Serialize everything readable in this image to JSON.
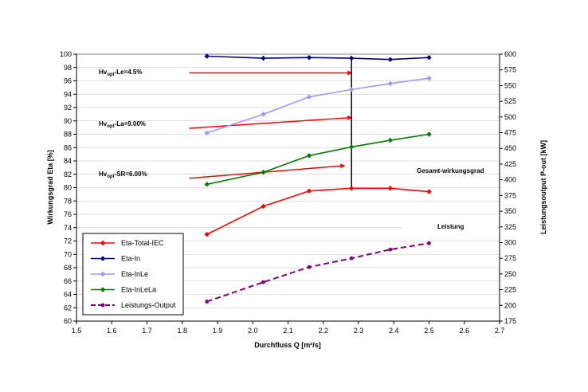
{
  "chart_data": {
    "type": "line",
    "xlabel": "Durchfluss Q [m³/s]",
    "ylabel_left": "Wirkungsgrad Eta [%]",
    "ylabel_right": "Leistungsoutput P-out [kW]",
    "xlim": [
      1.5,
      2.7
    ],
    "x_ticks": [
      "1.5",
      "1.6",
      "1.7",
      "1.8",
      "1.9",
      "2.0",
      "2.1",
      "2.2",
      "2.3",
      "2.4",
      "2.5",
      "2.6",
      "2.7"
    ],
    "ylim_left": [
      60,
      100
    ],
    "y_ticks_left": [
      "60",
      "62",
      "64",
      "66",
      "68",
      "70",
      "72",
      "74",
      "76",
      "78",
      "80",
      "82",
      "84",
      "86",
      "88",
      "90",
      "92",
      "94",
      "96",
      "98",
      "100"
    ],
    "ylim_right": [
      175,
      600
    ],
    "y_ticks_right": [
      "175",
      "200",
      "225",
      "250",
      "275",
      "300",
      "325",
      "350",
      "375",
      "400",
      "425",
      "450",
      "475",
      "500",
      "525",
      "550",
      "575",
      "600"
    ],
    "grid": true,
    "legend_position": "bottom-left",
    "series": [
      {
        "name": "Eta-Total-IEC",
        "axis": "left",
        "color": "#ff0000",
        "marker": "diamond",
        "dash": false,
        "x": [
          1.87,
          2.03,
          2.16,
          2.28,
          2.39,
          2.5
        ],
        "values": [
          73.0,
          77.2,
          79.5,
          79.9,
          79.9,
          79.4
        ]
      },
      {
        "name": "Eta-In",
        "axis": "left",
        "color": "#000080",
        "marker": "diamond",
        "dash": false,
        "x": [
          1.87,
          2.03,
          2.16,
          2.28,
          2.39,
          2.5
        ],
        "values": [
          99.7,
          99.4,
          99.5,
          99.4,
          99.2,
          99.5
        ]
      },
      {
        "name": "Eta-InLe",
        "axis": "left",
        "color": "#9999ff",
        "marker": "diamond",
        "dash": false,
        "x": [
          1.87,
          2.03,
          2.16,
          2.28,
          2.39,
          2.5
        ],
        "values": [
          88.2,
          91.0,
          93.6,
          94.7,
          95.6,
          96.4
        ]
      },
      {
        "name": "Eta-InLeLa",
        "axis": "left",
        "color": "#008000",
        "marker": "diamond",
        "dash": false,
        "x": [
          1.87,
          2.03,
          2.16,
          2.28,
          2.39,
          2.5
        ],
        "values": [
          80.5,
          82.3,
          84.8,
          86.1,
          87.1,
          88.0
        ]
      },
      {
        "name": "Leistungs-Output",
        "axis": "right",
        "color": "#800080",
        "marker": "circle",
        "dash": true,
        "x": [
          1.87,
          2.03,
          2.16,
          2.28,
          2.39,
          2.5
        ],
        "values": [
          206,
          237,
          261,
          275,
          289,
          299
        ]
      }
    ],
    "annotations": {
      "hv_le": {
        "main": "Hv",
        "sub": "opt",
        "rest": "-Le=4.5%"
      },
      "hv_la": {
        "main": "Hv",
        "sub": "opt",
        "rest": "-La=9.00%"
      },
      "hv_sr": {
        "main": "Hv",
        "sub": "opt",
        "rest": "-SR=6.00%"
      },
      "gesamt": "Gesamt-wirkungsgrad",
      "leistung": "Leistung"
    },
    "arrows": [
      {
        "x1": 1.82,
        "y1": 97.2,
        "x2": 2.28,
        "y2": 97.2
      },
      {
        "x1": 1.82,
        "y1": 88.9,
        "x2": 2.28,
        "y2": 90.5
      },
      {
        "x1": 1.82,
        "y1": 81.4,
        "x2": 2.26,
        "y2": 83.3
      }
    ],
    "vertical_line": {
      "x": 2.28,
      "y_from": 79.9,
      "y_to": 99.4
    }
  }
}
